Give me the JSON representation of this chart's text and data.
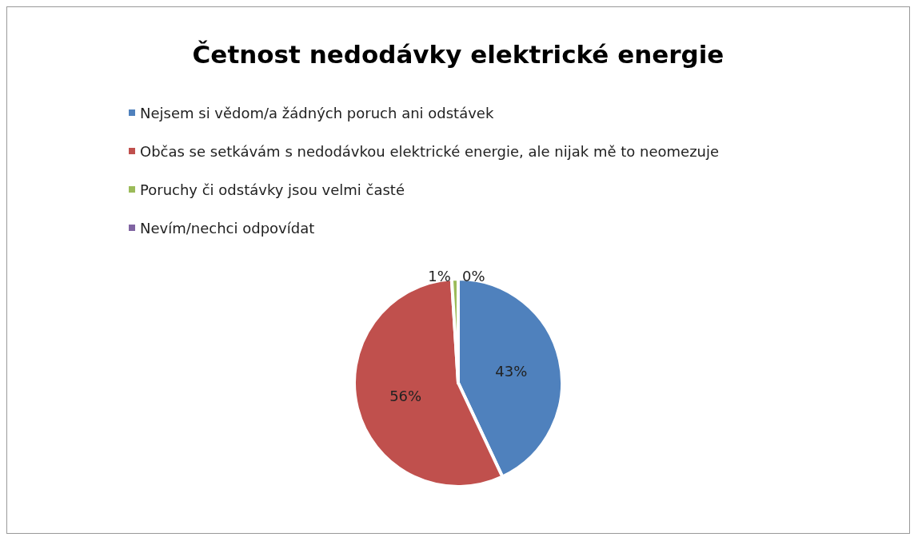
{
  "chart_data": {
    "type": "pie",
    "title": "Četnost nedodávky elektrické energie",
    "categories": [
      "Nejsem si vědom/a žádných poruch ani odstávek",
      "Občas se setkávám s nedodávkou elektrické energie, ale nijak mě to neomezuje",
      "Poruchy či odstávky jsou velmi časté",
      "Nevím/nechci odpovídat"
    ],
    "values": [
      43,
      56,
      1,
      0
    ],
    "colors": [
      "#4f81bd",
      "#c0504d",
      "#9bbb59",
      "#8064a2"
    ],
    "value_labels": [
      "43%",
      "56%",
      "1%",
      "0%"
    ],
    "legend": "top"
  }
}
